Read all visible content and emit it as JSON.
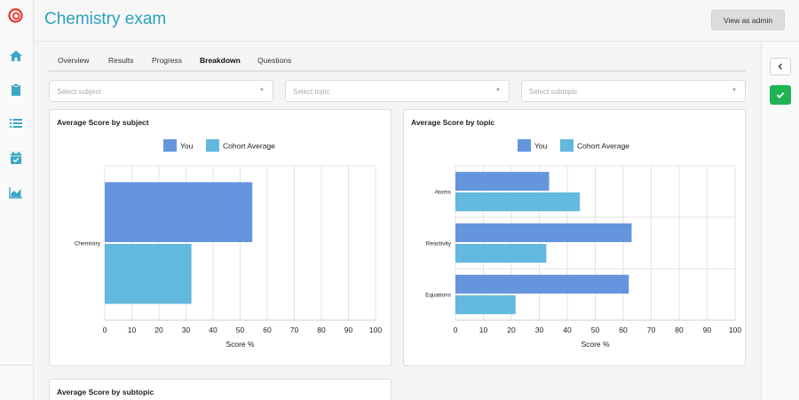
{
  "header": {
    "title": "Chemistry exam",
    "admin_button": "View as admin"
  },
  "sidebar": {
    "icons": [
      "logo-icon",
      "home-icon",
      "clipboard-icon",
      "list-icon",
      "calendar-check-icon",
      "area-chart-icon"
    ]
  },
  "tabs": [
    {
      "label": "Overview",
      "active": false
    },
    {
      "label": "Results",
      "active": false
    },
    {
      "label": "Progress",
      "active": false
    },
    {
      "label": "Breakdown",
      "active": true
    },
    {
      "label": "Questions",
      "active": false
    }
  ],
  "filters": {
    "subject_placeholder": "Select subject",
    "topic_placeholder": "Select topic",
    "subtopic_placeholder": "Select subtopic"
  },
  "colors": {
    "accent": "#2aa3bd",
    "you": "#6595dd",
    "cohort": "#62b8dd",
    "success": "#1fb354"
  },
  "subtopic_card": {
    "title": "Average Score by subtopic"
  },
  "chart_data": [
    {
      "type": "bar",
      "orientation": "horizontal",
      "title": "Average Score by subject",
      "xlabel": "Score %",
      "ylabel": "",
      "xlim": [
        0,
        100
      ],
      "xticks": [
        0,
        10,
        20,
        30,
        40,
        50,
        60,
        70,
        80,
        90,
        100
      ],
      "categories": [
        "Chemistry"
      ],
      "series": [
        {
          "name": "You",
          "color": "#6595dd",
          "values": [
            54.5
          ]
        },
        {
          "name": "Cohort Average",
          "color": "#62b8dd",
          "values": [
            32
          ]
        }
      ],
      "legend": "top"
    },
    {
      "type": "bar",
      "orientation": "horizontal",
      "title": "Average Score by topic",
      "xlabel": "Score %",
      "ylabel": "",
      "xlim": [
        0,
        100
      ],
      "xticks": [
        0,
        10,
        20,
        30,
        40,
        50,
        60,
        70,
        80,
        90,
        100
      ],
      "categories": [
        "Atoms",
        "Reactivity",
        "Equations"
      ],
      "series": [
        {
          "name": "You",
          "color": "#6595dd",
          "values": [
            33.5,
            63,
            62
          ]
        },
        {
          "name": "Cohort Average",
          "color": "#62b8dd",
          "values": [
            44.5,
            32.5,
            21.5
          ]
        }
      ],
      "legend": "top"
    }
  ]
}
